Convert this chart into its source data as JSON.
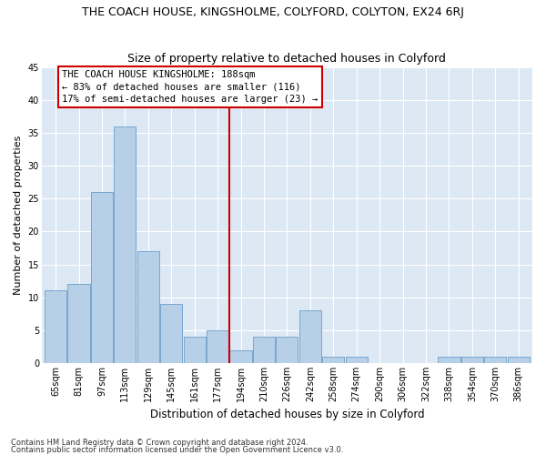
{
  "title": "THE COACH HOUSE, KINGSHOLME, COLYFORD, COLYTON, EX24 6RJ",
  "subtitle": "Size of property relative to detached houses in Colyford",
  "xlabel": "Distribution of detached houses by size in Colyford",
  "ylabel": "Number of detached properties",
  "categories": [
    "65sqm",
    "81sqm",
    "97sqm",
    "113sqm",
    "129sqm",
    "145sqm",
    "161sqm",
    "177sqm",
    "194sqm",
    "210sqm",
    "226sqm",
    "242sqm",
    "258sqm",
    "274sqm",
    "290sqm",
    "306sqm",
    "322sqm",
    "338sqm",
    "354sqm",
    "370sqm",
    "386sqm"
  ],
  "values": [
    11,
    12,
    26,
    36,
    17,
    9,
    4,
    5,
    2,
    4,
    4,
    8,
    1,
    1,
    0,
    0,
    0,
    1,
    1,
    1,
    1
  ],
  "bar_color": "#b8cfe8",
  "bar_edge_color": "#6a9fcb",
  "vline_x": 7.5,
  "vline_color": "#cc0000",
  "annotation_title": "THE COACH HOUSE KINGSHOLME: 188sqm",
  "annotation_line1": "← 83% of detached houses are smaller (116)",
  "annotation_line2": "17% of semi-detached houses are larger (23) →",
  "annotation_box_color": "#ffffff",
  "annotation_box_edge": "#cc0000",
  "background_color": "#dde8f5",
  "footer1": "Contains HM Land Registry data © Crown copyright and database right 2024.",
  "footer2": "Contains public sector information licensed under the Open Government Licence v3.0.",
  "ylim": [
    0,
    45
  ],
  "yticks": [
    0,
    5,
    10,
    15,
    20,
    25,
    30,
    35,
    40,
    45
  ],
  "title_fontsize": 9,
  "subtitle_fontsize": 9,
  "xlabel_fontsize": 8.5,
  "ylabel_fontsize": 8,
  "tick_fontsize": 7,
  "footer_fontsize": 6,
  "annotation_fontsize": 7.5
}
